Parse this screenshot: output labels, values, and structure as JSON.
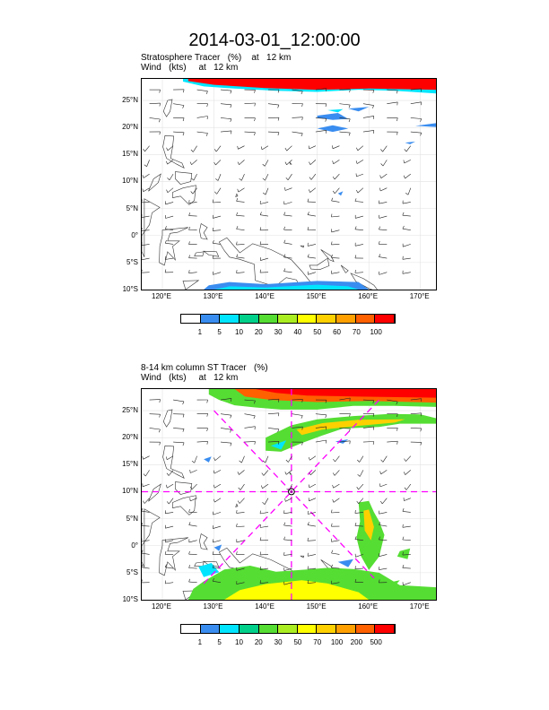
{
  "title": "2014-03-01_12:00:00",
  "panels": [
    {
      "name": "stratosphere-tracer",
      "subtitle_line1": "Stratosphere Tracer   (%)    at   12 km",
      "subtitle_line2": "Wind   (kts)     at   12 km",
      "lat_labels": [
        "25°N",
        "20°N",
        "15°N",
        "10°N",
        "5°N",
        "0°",
        "5°S",
        "10°S"
      ],
      "lon_labels": [
        "120°E",
        "130°E",
        "140°E",
        "150°E",
        "160°E",
        "170°E"
      ],
      "colorbar_labels": [
        "1",
        "5",
        "10",
        "20",
        "30",
        "40",
        "50",
        "60",
        "70",
        "100"
      ],
      "colorbar_colors": [
        "#ffffff",
        "#3a8df0",
        "#00e5ff",
        "#00d08a",
        "#55dd33",
        "#aaee22",
        "#ffff00",
        "#ffd000",
        "#ffa000",
        "#ff6000",
        "#ff0000"
      ]
    },
    {
      "name": "column-st-tracer",
      "subtitle_line1": "8-14 km column ST Tracer   (%)",
      "subtitle_line2": "Wind   (kts)     at   12 km",
      "lat_labels": [
        "25°N",
        "20°N",
        "15°N",
        "10°N",
        "5°N",
        "0°",
        "5°S",
        "10°S"
      ],
      "lon_labels": [
        "120°E",
        "130°E",
        "140°E",
        "150°E",
        "160°E",
        "170°E"
      ],
      "colorbar_labels": [
        "1",
        "5",
        "10",
        "20",
        "30",
        "50",
        "70",
        "100",
        "200",
        "500"
      ],
      "colorbar_colors": [
        "#ffffff",
        "#3a8df0",
        "#00e5ff",
        "#00d08a",
        "#55dd33",
        "#aaee22",
        "#ffff00",
        "#ffd000",
        "#ffa000",
        "#ff6000",
        "#ff0000"
      ]
    }
  ],
  "map_extent": {
    "lon_min": 116,
    "lon_max": 173,
    "lat_min": -10,
    "lat_max": 29
  },
  "storm_center": {
    "lon": 145,
    "lat": 10
  }
}
